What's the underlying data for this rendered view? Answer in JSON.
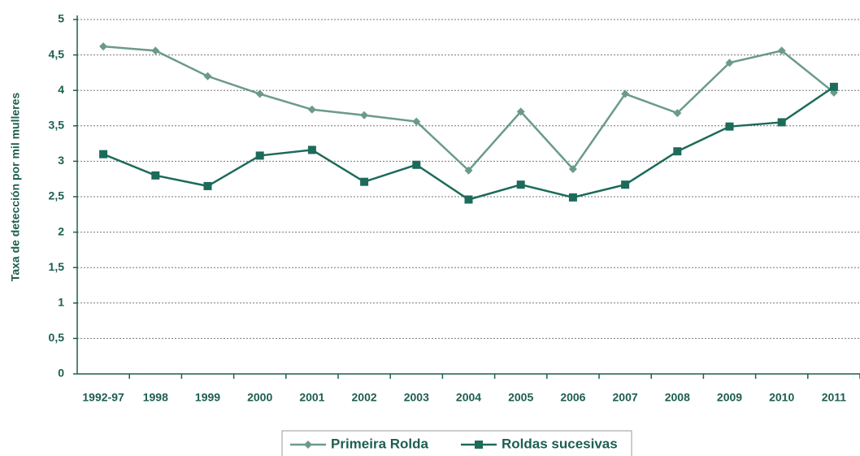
{
  "chart_data": {
    "type": "line",
    "y_label": "Taxa de detección por mil mulleres",
    "categories": [
      "1992-97",
      "1998",
      "1999",
      "2000",
      "2001",
      "2002",
      "2003",
      "2004",
      "2005",
      "2006",
      "2007",
      "2008",
      "2009",
      "2010",
      "2011"
    ],
    "series": [
      {
        "name": "Primeira Rolda",
        "color": "#6b9a8b",
        "marker": "diamond",
        "values": [
          4.62,
          4.56,
          4.2,
          3.95,
          3.73,
          3.65,
          3.56,
          2.87,
          3.7,
          2.89,
          3.95,
          3.68,
          4.39,
          4.56,
          3.97
        ]
      },
      {
        "name": "Roldas sucesivas",
        "color": "#1d6b5a",
        "marker": "square",
        "values": [
          3.1,
          2.8,
          2.65,
          3.08,
          3.16,
          2.71,
          2.95,
          2.46,
          2.67,
          2.49,
          2.67,
          3.14,
          3.49,
          3.55,
          4.05
        ]
      }
    ],
    "ylim": [
      0,
      5
    ],
    "yticks": [
      0,
      {
        "value": 0.5,
        "label": "0,5"
      },
      1,
      {
        "value": 1.5,
        "label": "1,5"
      },
      2,
      {
        "value": 2.5,
        "label": "2,5"
      },
      3,
      {
        "value": 3.5,
        "label": "3,5"
      },
      4,
      {
        "value": 4.5,
        "label": "4,5"
      },
      5
    ],
    "grid": true
  }
}
